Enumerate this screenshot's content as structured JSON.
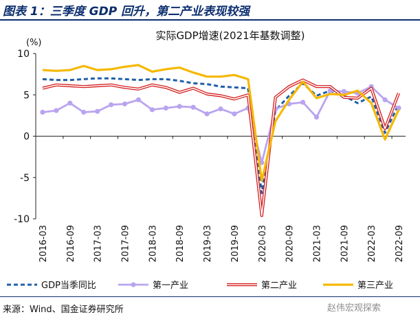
{
  "figure": {
    "title": "图表 1：三季度 GDP 回升，第二产业表现较强",
    "source": "来源：Wind、国金证券研究所",
    "watermark": "赵伟宏观探索"
  },
  "chart_data": {
    "type": "line",
    "title": "实际GDP增速(2021年基数调整)",
    "ylabel": "(%)",
    "ylim": [
      -10,
      10
    ],
    "yticks": [
      10,
      5,
      0,
      -5,
      -10
    ],
    "grid": false,
    "legend_position": "bottom",
    "tick_labels": [
      "2016-03",
      "2016-09",
      "2017-03",
      "2017-09",
      "2018-03",
      "2018-09",
      "2019-03",
      "2019-09",
      "2020-03",
      "2020-09",
      "2021-03",
      "2021-09",
      "2022-03",
      "2022-09"
    ],
    "categories": [
      "2016-03",
      "2016-06",
      "2016-09",
      "2016-12",
      "2017-03",
      "2017-06",
      "2017-09",
      "2017-12",
      "2018-03",
      "2018-06",
      "2018-09",
      "2018-12",
      "2019-03",
      "2019-06",
      "2019-09",
      "2019-12",
      "2020-03",
      "2020-06",
      "2020-09",
      "2020-12",
      "2021-03",
      "2021-06",
      "2021-09",
      "2021-12",
      "2022-03",
      "2022-06",
      "2022-09"
    ],
    "series": [
      {
        "name": "GDP当季同比",
        "color": "#1f5fa8",
        "style": "dashed",
        "values": [
          6.9,
          6.8,
          6.8,
          6.9,
          7.0,
          7.0,
          6.9,
          6.8,
          6.9,
          6.9,
          6.7,
          6.4,
          6.3,
          6.0,
          5.9,
          5.8,
          -6.9,
          3.1,
          4.9,
          6.4,
          4.9,
          5.5,
          4.9,
          4.0,
          4.8,
          0.4,
          3.9
        ]
      },
      {
        "name": "第一产业",
        "color": "#b9a4f0",
        "style": "solid",
        "values": [
          2.9,
          3.1,
          4.0,
          2.9,
          3.0,
          3.8,
          3.9,
          4.4,
          3.2,
          3.4,
          3.6,
          3.5,
          2.7,
          3.3,
          2.7,
          3.4,
          -3.2,
          3.3,
          3.9,
          4.1,
          2.3,
          5.5,
          5.4,
          5.2,
          6.0,
          4.4,
          3.4
        ]
      },
      {
        "name": "第二产业",
        "color": "#d41c1c",
        "style": "solid",
        "values": [
          5.8,
          6.2,
          6.1,
          6.0,
          6.1,
          6.2,
          5.9,
          5.7,
          6.2,
          5.9,
          5.3,
          5.8,
          5.1,
          4.9,
          4.5,
          5.0,
          -9.6,
          4.7,
          6.0,
          6.8,
          6.0,
          6.0,
          4.7,
          4.6,
          5.8,
          0.9,
          5.2
        ]
      },
      {
        "name": "第三产业",
        "color": "#f5b800",
        "style": "solid",
        "values": [
          8.0,
          7.9,
          8.0,
          8.5,
          8.0,
          8.1,
          8.4,
          8.6,
          7.8,
          8.1,
          8.3,
          7.7,
          7.2,
          7.2,
          7.4,
          6.9,
          -5.4,
          1.8,
          4.4,
          6.6,
          4.6,
          5.1,
          5.0,
          5.5,
          4.0,
          -0.4,
          3.2
        ]
      }
    ]
  }
}
